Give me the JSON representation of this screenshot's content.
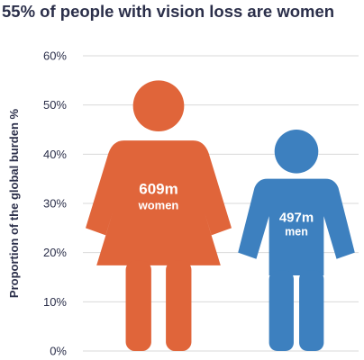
{
  "chart_data": {
    "type": "bar",
    "title": "55% of people with vision loss are women",
    "ylabel": "Proportion of the global burden %",
    "ylim": [
      0,
      60
    ],
    "yticks": [
      0,
      10,
      20,
      30,
      40,
      50,
      60
    ],
    "ytick_labels": [
      "0%",
      "10%",
      "20%",
      "30%",
      "40%",
      "50%",
      "60%"
    ],
    "grid": true,
    "series": [
      {
        "category": "women",
        "figure": "woman-icon",
        "value": 55,
        "count_label": "609m",
        "group_label": "women",
        "color": "#e0653a"
      },
      {
        "category": "men",
        "figure": "man-icon",
        "value": 45,
        "count_label": "497m",
        "group_label": "men",
        "color": "#3d80bf"
      }
    ],
    "colors": {
      "title": "#2b2f4a",
      "grid": "#d9d9d9"
    }
  }
}
